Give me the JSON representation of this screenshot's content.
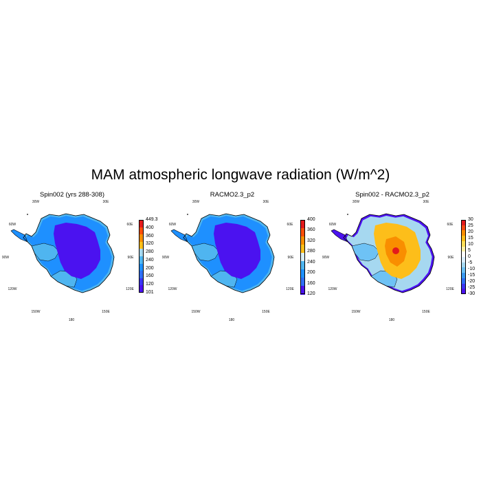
{
  "title": "MAM atmospheric longwave radiation (W/m^2)",
  "grid_labels": {
    "w30": "30W",
    "e30": "30E",
    "w60": "60W",
    "e60": "60E",
    "w90": "90W",
    "e90": "90E",
    "w120": "120W",
    "e120": "120E",
    "w150": "150W",
    "e150": "150E",
    "s180": "180"
  },
  "panels": [
    {
      "title": "Spin002 (yrs 288-308)",
      "field": "model",
      "colorbar": {
        "labels": [
          "449.3",
          "400",
          "360",
          "320",
          "280",
          "240",
          "200",
          "160",
          "120",
          "101"
        ],
        "colors": [
          "#e31a1c",
          "#fc4e0a",
          "#f98e00",
          "#fdbe1a",
          "#a6d8f0",
          "#4fb5f0",
          "#1e90ff",
          "#2f6ef5",
          "#3a36f3",
          "#4b12f0"
        ]
      }
    },
    {
      "title": "RACMO2.3_p2",
      "field": "reference",
      "colorbar": {
        "labels": [
          "400",
          "360",
          "320",
          "280",
          "240",
          "200",
          "160",
          "120"
        ],
        "colors": [
          "#e31a1c",
          "#fc4e0a",
          "#f98e00",
          "#fdbe1a",
          "#d8eef8",
          "#4fb5f0",
          "#1e90ff",
          "#2f6ef5",
          "#4b12f0"
        ]
      }
    },
    {
      "title": "Spin002 - RACMO2.3_p2",
      "field": "difference",
      "colorbar": {
        "labels": [
          "30",
          "25",
          "20",
          "15",
          "10",
          "5",
          "0",
          "-5",
          "-10",
          "-15",
          "-20",
          "-25",
          "-30"
        ],
        "colors": [
          "#e31a1c",
          "#f64a12",
          "#f98e00",
          "#fdbe1a",
          "#fde05a",
          "#fff2a8",
          "#ffffff",
          "#dcefff",
          "#a6d8f0",
          "#6ec2f5",
          "#3b9af0",
          "#2f6ef5",
          "#3a36f3",
          "#4b12f0"
        ]
      }
    }
  ],
  "colors": {
    "deep_blue": "#4b12f0",
    "mid_blue": "#1e90ff",
    "light_blue": "#4fb5f0",
    "orange": "#f98e00",
    "yellow": "#fdbe1a",
    "red": "#e31a1c"
  }
}
